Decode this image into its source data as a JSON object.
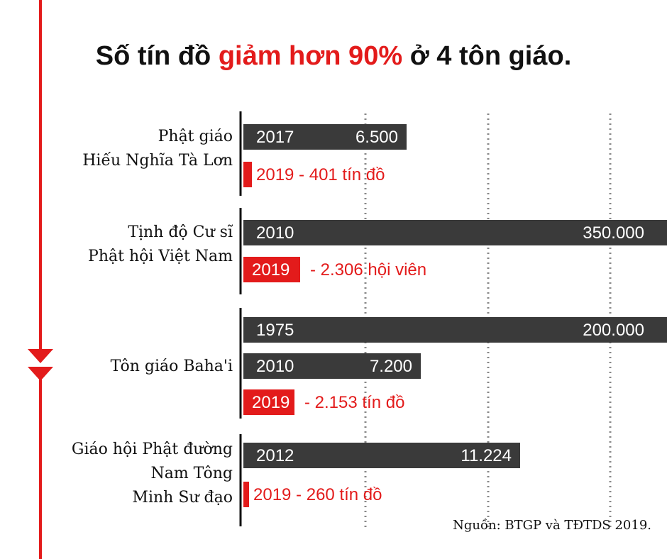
{
  "title": {
    "part1": "Số tín đồ",
    "highlight": "giảm hơn 90%",
    "part2": "ở 4 tôn giáo."
  },
  "source": "Nguồn: BTGP và TĐTDS  2019.",
  "colors": {
    "dark_bar": "#3a3a3a",
    "red_bar": "#e31b1b",
    "arrow": "#e31b1b",
    "text": "#111111"
  },
  "chart_data": {
    "type": "bar",
    "orientation": "horizontal",
    "title": "Số tín đồ giảm hơn 90% ở 4 tôn giáo.",
    "groups": [
      {
        "label_lines": [
          "Phật  giáo",
          "Hiếu  Nghĩa  Tà  Lơn"
        ],
        "bars": [
          {
            "year": "2017",
            "value": 6500,
            "value_label": "6.500",
            "highlight": false
          },
          {
            "year": "2019",
            "value": 401,
            "value_label": "2019 - 401 tín đồ",
            "highlight": true
          }
        ]
      },
      {
        "label_lines": [
          "Tịnh độ Cư sĩ",
          "Phật hội Việt Nam"
        ],
        "bars": [
          {
            "year": "2010",
            "value": 350000,
            "value_label": "350.000",
            "highlight": false
          },
          {
            "year": "2019",
            "value": 2306,
            "value_label": "- 2.306 hội viên",
            "highlight": true
          }
        ]
      },
      {
        "label_lines": [
          "Tôn giáo Baha'i"
        ],
        "bars": [
          {
            "year": "1975",
            "value": 200000,
            "value_label": "200.000",
            "highlight": false
          },
          {
            "year": "2010",
            "value": 7200,
            "value_label": "7.200",
            "highlight": false
          },
          {
            "year": "2019",
            "value": 2153,
            "value_label": "- 2.153 tín đồ",
            "highlight": true
          }
        ]
      },
      {
        "label_lines": [
          "Giáo hội Phật đường",
          "Nam Tông",
          "Minh Sư đạo"
        ],
        "bars": [
          {
            "year": "2012",
            "value": 11224,
            "value_label": "11.224",
            "highlight": false
          },
          {
            "year": "2019",
            "value": 260,
            "value_label": "2019 - 260 tín đồ",
            "highlight": true
          }
        ]
      }
    ]
  }
}
